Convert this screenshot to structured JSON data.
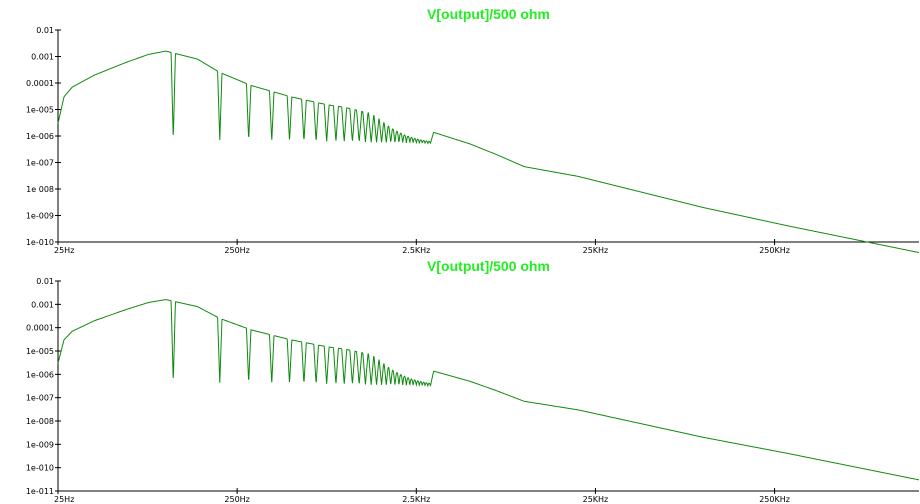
{
  "colors": {
    "trace": "#0e8a0e",
    "title": "#22ee22",
    "axis": "#000000",
    "background": "#ffffff"
  },
  "chart_data": [
    {
      "type": "line",
      "title": "V[output]/500 ohm",
      "xlabel": "",
      "ylabel": "",
      "xscale": "log",
      "yscale": "log",
      "xlim": [
        25,
        1600000
      ],
      "ylim": [
        1e-10,
        0.01
      ],
      "x_tick_values": [
        25,
        250,
        2500,
        25000,
        250000
      ],
      "x_tick_labels": [
        "25Hz",
        "250Hz",
        "2.5KHz",
        "25KHz",
        "250KHz"
      ],
      "y_tick_values": [
        0.01,
        0.001,
        0.0001,
        1e-05,
        1e-06,
        1e-07,
        1e-08,
        1e-09,
        1e-10
      ],
      "y_tick_labels": [
        "0.01",
        "0.001",
        "0.0001",
        "1e-005",
        "1e-006",
        "1e-007",
        "1e 008",
        "1e-009",
        "1e-010"
      ],
      "grid": false,
      "series": [
        {
          "name": "",
          "envelope": {
            "x": [
              25,
              27,
              30,
              40,
              60,
              80,
              100,
              150,
              200,
              300,
              500,
              800,
              1000,
              2000,
              3000,
              5000,
              7000,
              10000,
              20000,
              100000,
              300000,
              1600000
            ],
            "y": [
              3e-06,
              3e-05,
              7e-05,
              0.0002,
              0.0006,
              0.0012,
              0.0016,
              0.0008,
              0.00025,
              8e-05,
              3e-05,
              1.5e-05,
              1.2e-05,
              4e-06,
              1.5e-06,
              5e-07,
              2e-07,
              7e-08,
              3e-08,
              2e-09,
              4e-10,
              4e-11
            ]
          },
          "nulls_x": [
            110,
            200,
            290,
            390,
            490,
            590,
            690,
            790,
            890,
            990,
            1100,
            1200,
            1300,
            1400,
            1500,
            1600,
            1700,
            1800,
            1900,
            2000,
            2100,
            2200,
            2300,
            2400,
            2500,
            2600,
            2700,
            2800,
            2900,
            3000
          ],
          "null_floor": 5e-07
        }
      ]
    },
    {
      "type": "line",
      "title": "V[output]/500 ohm",
      "xlabel": "",
      "ylabel": "",
      "xscale": "log",
      "yscale": "log",
      "xlim": [
        25,
        1600000
      ],
      "ylim": [
        1e-11,
        0.01
      ],
      "x_tick_values": [
        25,
        250,
        2500,
        25000,
        250000
      ],
      "x_tick_labels": [
        "25Hz",
        "250Hz",
        "2.5KHz",
        "25KHz",
        "250KHz"
      ],
      "y_tick_values": [
        0.01,
        0.001,
        0.0001,
        1e-05,
        1e-06,
        1e-07,
        1e-08,
        1e-09,
        1e-10,
        1e-11
      ],
      "y_tick_labels": [
        "0.01",
        "0.001",
        "0.0001",
        "1e-005",
        "1e-006",
        "1e-007",
        "1e-008",
        "1e-009",
        "1e-010",
        "1e-011"
      ],
      "grid": false,
      "series": [
        {
          "name": "",
          "envelope": {
            "x": [
              25,
              27,
              30,
              40,
              60,
              80,
              100,
              150,
              200,
              300,
              500,
              800,
              1000,
              2000,
              3000,
              5000,
              7000,
              10000,
              20000,
              100000,
              300000,
              1600000
            ],
            "y": [
              3e-06,
              3e-05,
              7e-05,
              0.0002,
              0.0006,
              0.0012,
              0.0016,
              0.0008,
              0.00025,
              8e-05,
              3e-05,
              1.5e-05,
              1.2e-05,
              4e-06,
              1.5e-06,
              5e-07,
              2e-07,
              7e-08,
              3e-08,
              2e-09,
              4e-10,
              3e-11
            ]
          },
          "nulls_x": [
            110,
            200,
            290,
            390,
            490,
            590,
            690,
            790,
            890,
            990,
            1100,
            1200,
            1300,
            1400,
            1500,
            1600,
            1700,
            1800,
            1900,
            2000,
            2100,
            2200,
            2300,
            2400,
            2500,
            2600,
            2700,
            2800,
            2900,
            3000
          ],
          "null_floor": 3e-07
        }
      ]
    }
  ]
}
